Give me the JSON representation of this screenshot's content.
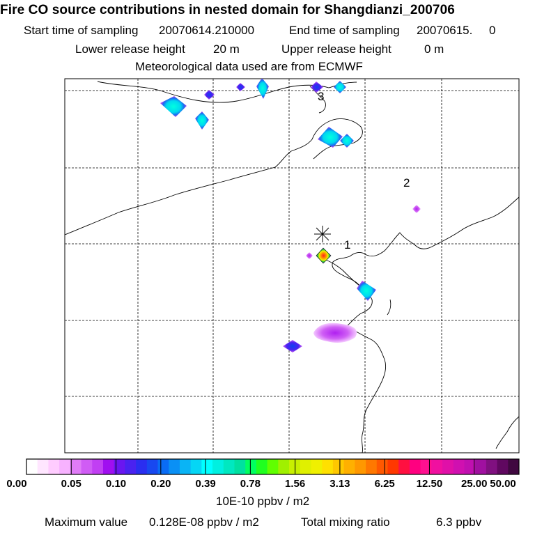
{
  "header": {
    "title": "Fire CO source contributions in nested domain for Shangdianzi_200706",
    "start_label": "Start time of sampling",
    "start_value": "20070614.210000",
    "end_label": "End time of sampling",
    "end_value": "20070615.     0",
    "lower_label": "Lower release height",
    "lower_value": "20 m",
    "upper_label": "Upper release height",
    "upper_value": "0 m",
    "met_text": "Meteorological data used are from ECMWF"
  },
  "map": {
    "receptor_labels": [
      "1",
      "2",
      "3"
    ]
  },
  "legend": {
    "tick_labels": [
      "0.00",
      "0.05",
      "0.10",
      "0.20",
      "0.39",
      "0.78",
      "1.56",
      "3.13",
      "6.25",
      "12.50",
      "25.00",
      "50.00"
    ],
    "units": "10E-10 ppbv / m2",
    "colors": [
      "#ffffff",
      "#ffe6ff",
      "#ffccff",
      "#f7b2ff",
      "#e07cf7",
      "#d05cf5",
      "#c13ff3",
      "#a00ff0",
      "#6a16f0",
      "#4a22f0",
      "#2a2ef0",
      "#1848f0",
      "#0a6cf5",
      "#0a90f5",
      "#0ab4f5",
      "#05d6f5",
      "#00ffff",
      "#00f0e0",
      "#00e8c0",
      "#00e0a0",
      "#00ff60",
      "#20ff20",
      "#60ff00",
      "#a0f000",
      "#c8f000",
      "#e0f000",
      "#f0f000",
      "#ffe000",
      "#ffc800",
      "#ffb000",
      "#ff9800",
      "#ff7800",
      "#ff5800",
      "#ff3800",
      "#ff1040",
      "#ff0080",
      "#ff1090",
      "#f010a0",
      "#e010a8",
      "#d010b0",
      "#c010b0",
      "#a010a0",
      "#801080",
      "#600860",
      "#400840"
    ]
  },
  "footer": {
    "max_label": "Maximum value",
    "max_value": "0.128E-08 ppbv / m2",
    "total_label": "Total mixing ratio",
    "total_value": "6.3 ppbv"
  }
}
